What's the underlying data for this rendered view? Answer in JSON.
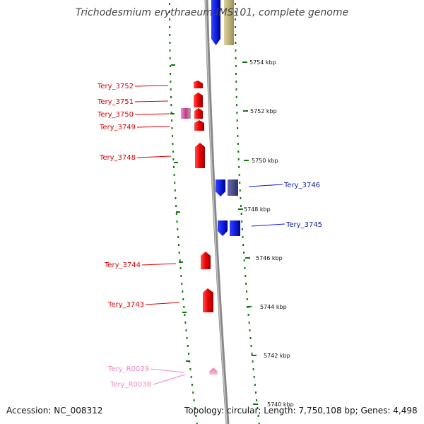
{
  "title": "Trichodesmium erythraeum IMS101, complete genome",
  "footer": {
    "accession": "Accession: NC_008312",
    "topology": "Topology: circular; Length: 7,750,108 bp; Genes: 4,498"
  },
  "colors": {
    "forward_gene": "#dd0000",
    "reverse_gene": "#1020e0",
    "reverse_gene_dark": "#4a4a8a",
    "rna_gene": "#ee88bb",
    "other_feature": "#bfb37a",
    "backbone": "#808080",
    "ticks": "#117711"
  },
  "scale_labels": [
    "5754 kbp",
    "5752 kbp",
    "5750 kbp",
    "5748 kbp",
    "5746 kbp",
    "5744 kbp",
    "5742 kbp",
    "5740 kbp"
  ],
  "gene_labels": [
    {
      "id": "Tery_3752",
      "strand": "forward"
    },
    {
      "id": "Tery_3751",
      "strand": "forward"
    },
    {
      "id": "Tery_3750",
      "strand": "forward"
    },
    {
      "id": "Tery_3749",
      "strand": "forward"
    },
    {
      "id": "Tery_3748",
      "strand": "forward"
    },
    {
      "id": "Tery_3746",
      "strand": "reverse"
    },
    {
      "id": "Tery_3745",
      "strand": "reverse"
    },
    {
      "id": "Tery_3744",
      "strand": "forward"
    },
    {
      "id": "Tery_3743",
      "strand": "forward"
    },
    {
      "id": "Tery_R0039",
      "strand": "rna"
    },
    {
      "id": "Tery_R0038",
      "strand": "rna"
    }
  ]
}
